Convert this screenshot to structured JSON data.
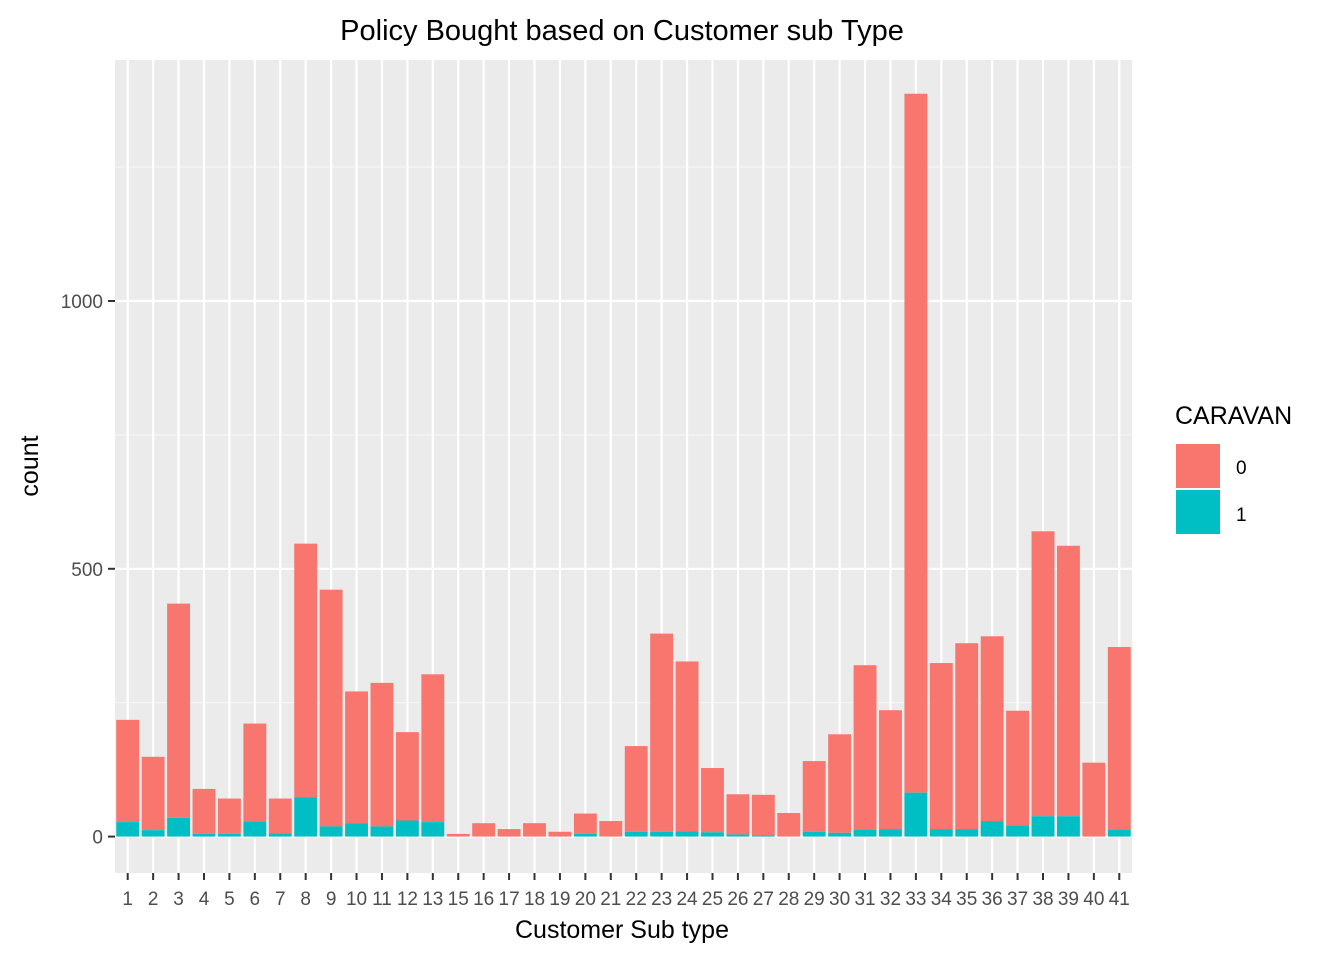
{
  "chart_data": {
    "type": "bar",
    "stacked": true,
    "title": "Policy Bought based on Customer sub Type",
    "xlabel": "Customer Sub type",
    "ylabel": "count",
    "categories": [
      "1",
      "2",
      "3",
      "4",
      "5",
      "6",
      "7",
      "8",
      "9",
      "10",
      "11",
      "12",
      "13",
      "15",
      "16",
      "17",
      "18",
      "19",
      "20",
      "21",
      "22",
      "23",
      "24",
      "25",
      "26",
      "27",
      "28",
      "29",
      "30",
      "31",
      "32",
      "33",
      "34",
      "35",
      "36",
      "37",
      "38",
      "39",
      "40",
      "41"
    ],
    "series": [
      {
        "name": "0",
        "color": "#F8766D",
        "values": [
          191,
          137,
          400,
          84,
          66,
          183,
          65,
          474,
          442,
          246,
          268,
          165,
          276,
          5,
          25,
          14,
          25,
          9,
          38,
          29,
          160,
          370,
          317,
          120,
          75,
          76,
          44,
          132,
          184,
          307,
          222,
          1305,
          310,
          347,
          345,
          214,
          532,
          505,
          138,
          341
        ]
      },
      {
        "name": "1",
        "color": "#00BFC4",
        "values": [
          27,
          12,
          35,
          5,
          5,
          28,
          6,
          73,
          19,
          25,
          19,
          30,
          27,
          0,
          0,
          0,
          0,
          0,
          5,
          0,
          9,
          9,
          10,
          8,
          4,
          2,
          0,
          9,
          7,
          13,
          14,
          82,
          14,
          14,
          29,
          21,
          38,
          38,
          0,
          13
        ]
      }
    ],
    "ylim": [
      -68,
      1450
    ],
    "yticks": [
      0,
      500,
      1000
    ],
    "grid": true,
    "legend": {
      "title": "CARAVAN",
      "position": "right",
      "entries": [
        "0",
        "1"
      ]
    }
  },
  "colors": {
    "panel_background": "#EBEBEB",
    "grid": "#FFFFFF",
    "tick_text": "#4D4D4D"
  }
}
